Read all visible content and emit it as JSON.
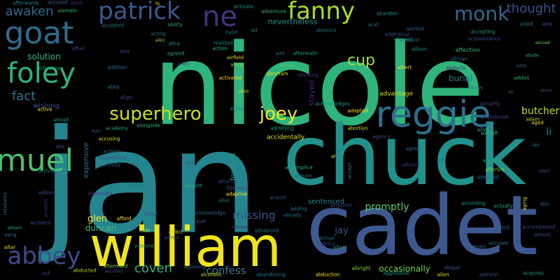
{
  "background": "#000000",
  "palette": {
    "teal": "#2a9d8f",
    "green": "#35b779",
    "blue": "#3b528b",
    "purple": "#440154",
    "yellow": "#fde725",
    "lime": "#b5de2b",
    "cyan": "#21918c",
    "navy": "#31688e"
  },
  "words": [
    {
      "text": "nicole",
      "color": "#2fb47c"
    },
    {
      "text": "jan",
      "color": "#25858e"
    },
    {
      "text": "chuck",
      "color": "#21918c"
    },
    {
      "text": "cadet",
      "color": "#3e5890"
    },
    {
      "text": "william",
      "color": "#f0e51c"
    },
    {
      "text": "reggie",
      "color": "#2d6f8e"
    },
    {
      "text": "patrick",
      "color": "#3a5a8c"
    },
    {
      "text": "goat",
      "color": "#2e6c8e"
    },
    {
      "text": "fanny",
      "color": "#a5db36"
    },
    {
      "text": "samuel",
      "color": "#4ac16d"
    },
    {
      "text": "foley",
      "color": "#2db27d"
    },
    {
      "text": "abbey",
      "color": "#3e4b8a"
    },
    {
      "text": "superhero",
      "color": "#c8e020"
    },
    {
      "text": "joey",
      "color": "#f2e51d"
    },
    {
      "text": "monk",
      "color": "#2f6b8e"
    },
    {
      "text": "ne",
      "color": "#46327e"
    },
    {
      "text": "cup",
      "color": "#a2da37"
    },
    {
      "text": "thought",
      "color": "#3b518b"
    },
    {
      "text": "awaken",
      "color": "#31688e"
    },
    {
      "text": "fact",
      "color": "#2c738e"
    },
    {
      "text": "missing",
      "color": "#3b528b"
    },
    {
      "text": "coven",
      "color": "#2fb47c"
    },
    {
      "text": "confess",
      "color": "#2a788e"
    },
    {
      "text": "promptly",
      "color": "#5ec962"
    },
    {
      "text": "butcher",
      "color": "#b8de29"
    },
    {
      "text": "glen",
      "color": "#fde725"
    },
    {
      "text": "duncan",
      "color": "#3aba76"
    },
    {
      "text": "occasionally",
      "color": "#7ad151"
    },
    {
      "text": "solution",
      "color": "#35b779"
    },
    {
      "text": "nevertheless",
      "color": "#21918c"
    },
    {
      "text": "burial",
      "color": "#287c8e"
    },
    {
      "text": "advantage",
      "color": "#d8e219"
    },
    {
      "text": "accidentally",
      "color": "#e5e419"
    },
    {
      "text": "sentenced",
      "color": "#25838e"
    },
    {
      "text": "li",
      "color": "#24868e"
    },
    {
      "text": "jay",
      "color": "#3b528b"
    },
    {
      "text": "stayed",
      "color": "#482677"
    },
    {
      "text": "forgives",
      "color": "#1f998a"
    },
    {
      "text": "wishing",
      "color": "#3e4c8a"
    },
    {
      "text": "expensive",
      "color": "#2a788e"
    },
    {
      "text": "affection",
      "color": "#2fb47c"
    },
    {
      "text": "abroad",
      "color": "#6ccd5a"
    },
    {
      "text": "admit",
      "color": "#34618d"
    },
    {
      "text": "abode",
      "color": "#2ab07f"
    },
    {
      "text": "alcoholic",
      "color": "#d2e21b"
    },
    {
      "text": "abandoning",
      "color": "#2a788e"
    },
    {
      "text": "abduction",
      "color": "#fde725"
    },
    {
      "text": "admiral",
      "color": "#3e4a89"
    },
    {
      "text": "albright",
      "color": "#8fd744"
    },
    {
      "text": "abducted",
      "color": "#b5de2b"
    },
    {
      "text": "aftermard",
      "color": "#86d549"
    },
    {
      "text": "act",
      "color": "#3b528b"
    },
    {
      "text": "altar",
      "color": "#fde725"
    },
    {
      "text": "acquires",
      "color": "#1fa188"
    },
    {
      "text": "alien",
      "color": "#f1e51d"
    },
    {
      "text": "abigail",
      "color": "#3e4c8a"
    },
    {
      "text": "almost",
      "color": "#3b518b"
    },
    {
      "text": "accompanied",
      "color": "#3e4989"
    },
    {
      "text": "agrees",
      "color": "#31688e"
    },
    {
      "text": "accuses",
      "color": "#26828e"
    },
    {
      "text": "actually",
      "color": "#25ab82"
    },
    {
      "text": "according",
      "color": "#1f9e89"
    },
    {
      "text": "abu",
      "color": "#31688e"
    },
    {
      "text": "aging",
      "color": "#d2e21b"
    },
    {
      "text": "airport",
      "color": "#3b528b"
    },
    {
      "text": "airplane",
      "color": "#287c8e"
    },
    {
      "text": "affect",
      "color": "#e5e419"
    },
    {
      "text": "alfred",
      "color": "#3e4a89"
    },
    {
      "text": "aide",
      "color": "#b5de2b"
    },
    {
      "text": "afford",
      "color": "#fde725"
    },
    {
      "text": "accident",
      "color": "#3e4c8a"
    },
    {
      "text": "alison",
      "color": "#25ab82"
    },
    {
      "text": "aang",
      "color": "#2c738e"
    },
    {
      "text": "abortion",
      "color": "#d8e219"
    },
    {
      "text": "admitting",
      "color": "#1f9e89"
    },
    {
      "text": "adopted",
      "color": "#fde725"
    },
    {
      "text": "acknowledges",
      "color": "#1fa188"
    },
    {
      "text": "alpha",
      "color": "#25838e"
    },
    {
      "text": "also",
      "color": "#d8e219"
    },
    {
      "text": "activated",
      "color": "#fde725"
    },
    {
      "text": "abraham",
      "color": "#e5e419"
    },
    {
      "text": "abuse",
      "color": "#5ec962"
    },
    {
      "text": "allowing",
      "color": "#46327e"
    },
    {
      "text": "along",
      "color": "#86d549"
    },
    {
      "text": "airfield",
      "color": "#d8e219"
    },
    {
      "text": "action",
      "color": "#3aba76"
    },
    {
      "text": "realized",
      "color": "#21918c"
    },
    {
      "text": "habit",
      "color": "#2a788e"
    },
    {
      "text": "agreed",
      "color": "#25ab82"
    },
    {
      "text": "alice",
      "color": "#1f9e89"
    },
    {
      "text": "alec",
      "color": "#86d549"
    },
    {
      "text": "acting",
      "color": "#2a788e"
    },
    {
      "text": "ability",
      "color": "#25ab82"
    },
    {
      "text": "accepted",
      "color": "#2a788e"
    },
    {
      "text": "alamein",
      "color": "#3aba76"
    },
    {
      "text": "adult",
      "color": "#482677"
    },
    {
      "text": "afterwards",
      "color": "#21918c"
    },
    {
      "text": "accused",
      "color": "#31688e"
    },
    {
      "text": "activate",
      "color": "#1f9e89"
    },
    {
      "text": "adventure",
      "color": "#3aba76"
    },
    {
      "text": "abandon",
      "color": "#21918c"
    },
    {
      "text": "alerted",
      "color": "#31688e"
    },
    {
      "text": "additional",
      "color": "#3e4c8a"
    },
    {
      "text": "allowed",
      "color": "#25ab82"
    },
    {
      "text": "account",
      "color": "#2a788e"
    },
    {
      "text": "allison",
      "color": "#21918c"
    },
    {
      "text": "african",
      "color": "#2c738e"
    },
    {
      "text": "albert",
      "color": "#fde725"
    },
    {
      "text": "abducts",
      "color": "#482677"
    },
    {
      "text": "addict",
      "color": "#3aba76"
    },
    {
      "text": "allows",
      "color": "#25838e"
    },
    {
      "text": "abruptly",
      "color": "#3e4c8a"
    },
    {
      "text": "abandoned",
      "color": "#3e4989"
    },
    {
      "text": "aged",
      "color": "#fde725"
    },
    {
      "text": "adam",
      "color": "#b5de2b"
    },
    {
      "text": "aircraft",
      "color": "#3aba76"
    },
    {
      "text": "alive",
      "color": "#2fb47c"
    },
    {
      "text": "agency",
      "color": "#3e4c8a"
    },
    {
      "text": "agree",
      "color": "#31688e"
    },
    {
      "text": "adviser",
      "color": "#46327e"
    },
    {
      "text": "ah",
      "color": "#2a788e"
    },
    {
      "text": "abusive",
      "color": "#25ab82"
    },
    {
      "text": "afterlife",
      "color": "#86d549"
    },
    {
      "text": "admitted",
      "color": "#31688e"
    },
    {
      "text": "alert",
      "color": "#3e4989"
    },
    {
      "text": "accept",
      "color": "#2a788e"
    },
    {
      "text": "al",
      "color": "#fde725"
    },
    {
      "text": "accomplice",
      "color": "#2fb47c"
    },
    {
      "text": "acquire",
      "color": "#2c738e"
    },
    {
      "text": "ahead",
      "color": "#1f9e89"
    },
    {
      "text": "active",
      "color": "#fde725"
    },
    {
      "text": "academy",
      "color": "#25ab82"
    },
    {
      "text": "ago",
      "color": "#3e4c8a"
    },
    {
      "text": "accusing",
      "color": "#d8e219"
    },
    {
      "text": "actress",
      "color": "#2a788e"
    },
    {
      "text": "accompany",
      "color": "#3e4c8a"
    },
    {
      "text": "activity",
      "color": "#2c738e"
    },
    {
      "text": "alongside",
      "color": "#2fb47c"
    },
    {
      "text": "abe",
      "color": "#3e4989"
    },
    {
      "text": "retaliates",
      "color": "#31688e"
    },
    {
      "text": "activist",
      "color": "#2a788e"
    },
    {
      "text": "address",
      "color": "#3e4c8a"
    },
    {
      "text": "accepts",
      "color": "#482677"
    },
    {
      "text": "alexandra",
      "color": "#46327e"
    },
    {
      "text": "allie",
      "color": "#3b528b"
    },
    {
      "text": "aboard",
      "color": "#2fb47c"
    },
    {
      "text": "adopt",
      "color": "#3e4c8a"
    },
    {
      "text": "acknowledge",
      "color": "#31688e"
    },
    {
      "text": "alan",
      "color": "#3b528b"
    },
    {
      "text": "abused",
      "color": "#482677"
    },
    {
      "text": "agreeing",
      "color": "#31688e"
    },
    {
      "text": "alcohol",
      "color": "#3e4c8a"
    },
    {
      "text": "advanced",
      "color": "#2a788e"
    },
    {
      "text": "alliance",
      "color": "#3e4989"
    },
    {
      "text": "alias",
      "color": "#2c738e"
    },
    {
      "text": "adaptive",
      "color": "#fde725"
    },
    {
      "text": "formal",
      "color": "#3e4c8a"
    },
    {
      "text": "adding",
      "color": "#2c738e"
    },
    {
      "text": "already",
      "color": "#2a788e"
    },
    {
      "text": "actual",
      "color": "#2a788e"
    },
    {
      "text": "alter",
      "color": "#1f9e89"
    },
    {
      "text": "advice",
      "color": "#3e4c8a"
    },
    {
      "text": "acquired",
      "color": "#3e4c8a"
    },
    {
      "text": "aggressive",
      "color": "#1f9e89"
    },
    {
      "text": "aim",
      "color": "#2a788e"
    },
    {
      "text": "aftermath",
      "color": "#25ab82"
    },
    {
      "text": "alex",
      "color": "#3e4c8a"
    },
    {
      "text": "addition",
      "color": "#2c738e"
    },
    {
      "text": "abby",
      "color": "#2a788e"
    },
    {
      "text": "align",
      "color": "#3e4c8a"
    },
    {
      "text": "affair",
      "color": "#3e4c8a"
    },
    {
      "text": "activates",
      "color": "#25ab82"
    },
    {
      "text": "absence",
      "color": "#2c738e"
    },
    {
      "text": "acid",
      "color": "#2a788e"
    },
    {
      "text": "acquaintance",
      "color": "#3e4c8a"
    },
    {
      "text": "accepting",
      "color": "#1f9e89"
    },
    {
      "text": "aided",
      "color": "#2c738e"
    },
    {
      "text": "able",
      "color": "#3e4c8a"
    },
    {
      "text": "ad",
      "color": "#2a788e"
    },
    {
      "text": "adds",
      "color": "#31688e"
    },
    {
      "text": "allen",
      "color": "#3e4c8a"
    },
    {
      "text": "alone",
      "color": "#3e4c8a"
    },
    {
      "text": "air",
      "color": "#2a788e"
    },
    {
      "text": "abc",
      "color": "#2c738e"
    },
    {
      "text": "%",
      "color": "#d8e219"
    }
  ]
}
